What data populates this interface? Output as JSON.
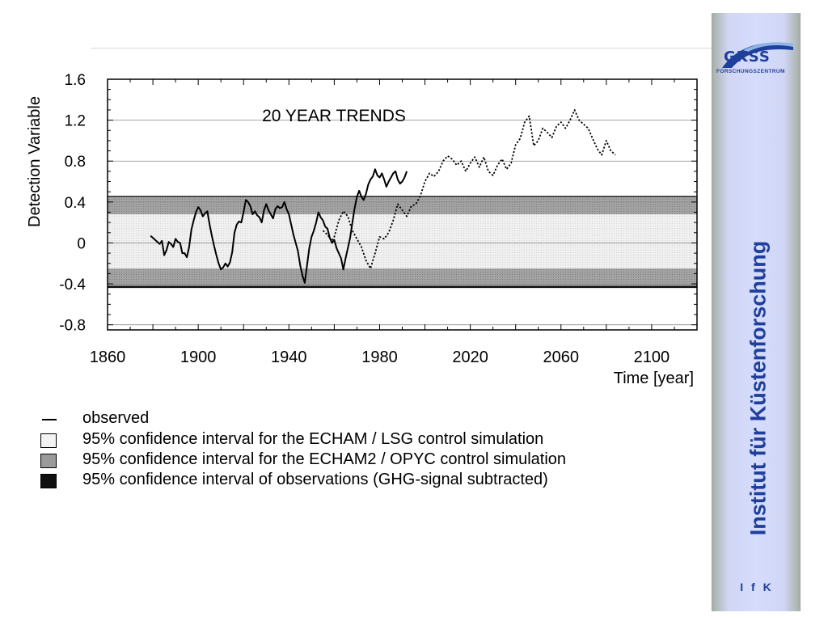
{
  "chart_data": {
    "type": "line",
    "title": "20 YEAR TRENDS",
    "ylabel": "Detection Variable",
    "xlabel": "Time [year]",
    "xlim": [
      1860,
      2120
    ],
    "ylim": [
      -0.85,
      1.6
    ],
    "x_ticks": [
      "1860",
      "1900",
      "1940",
      "1980",
      "2020",
      "2060",
      "2100"
    ],
    "y_ticks": [
      "1.6",
      "1.2",
      "0.8",
      "0.4",
      "0",
      "-0.4",
      "-0.8"
    ],
    "grid": "horizontal",
    "bands": [
      {
        "name": "95% confidence interval of observations (GHG-signal subtracted)",
        "lower": -0.44,
        "upper": 0.46,
        "color": "#101010"
      },
      {
        "name": "95% confidence interval for the ECHAM2 / OPYC control simulation",
        "lower": -0.42,
        "upper": 0.45,
        "color": "#9a9a9a"
      },
      {
        "name": "95% confidence interval for the ECHAM / LSG control simulation",
        "lower": -0.25,
        "upper": 0.28,
        "color": "#ededed"
      }
    ],
    "series": [
      {
        "name": "observed",
        "style": "solid",
        "x": [
          1879,
          1881,
          1883,
          1884,
          1885,
          1886,
          1887,
          1888,
          1889,
          1890,
          1891,
          1892,
          1893,
          1894,
          1895,
          1896,
          1897,
          1898,
          1899,
          1900,
          1901,
          1902,
          1903,
          1904,
          1905,
          1906,
          1907,
          1908,
          1909,
          1910,
          1911,
          1912,
          1913,
          1914,
          1915,
          1916,
          1917,
          1918,
          1919,
          1920,
          1921,
          1922,
          1923,
          1924,
          1925,
          1926,
          1927,
          1928,
          1929,
          1930,
          1931,
          1932,
          1933,
          1934,
          1935,
          1936,
          1937,
          1938,
          1939,
          1940,
          1941,
          1942,
          1943,
          1944,
          1945,
          1946,
          1947,
          1948,
          1949,
          1950,
          1951,
          1952,
          1953,
          1954,
          1955,
          1956,
          1957,
          1958,
          1959,
          1960,
          1961,
          1962,
          1963,
          1964,
          1965,
          1966,
          1967,
          1968,
          1969,
          1970,
          1971,
          1972,
          1973,
          1974,
          1975,
          1976,
          1977,
          1978,
          1979,
          1980,
          1981,
          1982,
          1983,
          1984,
          1985,
          1986,
          1987,
          1988,
          1989,
          1990,
          1991,
          1992
        ],
        "y": [
          0.07,
          0.03,
          -0.01,
          0.02,
          -0.12,
          -0.07,
          0.01,
          -0.01,
          -0.04,
          0.04,
          0.01,
          0.0,
          -0.1,
          -0.1,
          -0.14,
          -0.04,
          0.13,
          0.22,
          0.3,
          0.35,
          0.32,
          0.26,
          0.29,
          0.31,
          0.18,
          0.07,
          -0.03,
          -0.12,
          -0.2,
          -0.26,
          -0.24,
          -0.2,
          -0.23,
          -0.19,
          -0.09,
          0.1,
          0.18,
          0.21,
          0.2,
          0.3,
          0.42,
          0.4,
          0.36,
          0.28,
          0.31,
          0.27,
          0.25,
          0.2,
          0.32,
          0.38,
          0.32,
          0.28,
          0.24,
          0.33,
          0.36,
          0.34,
          0.35,
          0.4,
          0.33,
          0.28,
          0.18,
          0.08,
          0.0,
          -0.08,
          -0.22,
          -0.32,
          -0.39,
          -0.22,
          -0.05,
          0.06,
          0.12,
          0.2,
          0.3,
          0.25,
          0.22,
          0.16,
          0.14,
          0.05,
          0.0,
          0.03,
          -0.05,
          -0.1,
          -0.15,
          -0.26,
          -0.15,
          -0.05,
          0.05,
          0.2,
          0.34,
          0.45,
          0.51,
          0.45,
          0.42,
          0.48,
          0.57,
          0.62,
          0.65,
          0.72,
          0.66,
          0.64,
          0.68,
          0.62,
          0.55,
          0.6,
          0.64,
          0.68,
          0.7,
          0.62,
          0.58,
          0.6,
          0.64,
          0.7
        ]
      },
      {
        "name": "",
        "style": "dotted",
        "x": [
          1955,
          1957,
          1959,
          1960,
          1962,
          1964,
          1966,
          1968,
          1970,
          1972,
          1974,
          1976,
          1978,
          1980,
          1982,
          1984,
          1986,
          1987,
          1988,
          1990,
          1992,
          1994,
          1996,
          1998,
          2000,
          2002,
          2004,
          2006,
          2008,
          2010,
          2012,
          2014,
          2016,
          2018,
          2020,
          2022,
          2024,
          2026,
          2028,
          2030,
          2032,
          2034,
          2036,
          2038,
          2040,
          2042,
          2044,
          2046,
          2048,
          2050,
          2052,
          2054,
          2056,
          2058,
          2060,
          2062,
          2064,
          2066,
          2068,
          2070,
          2072,
          2074,
          2076,
          2078,
          2080,
          2082,
          2084
        ],
        "y": [
          0.12,
          0.08,
          0.02,
          0.06,
          0.22,
          0.31,
          0.26,
          0.12,
          0.04,
          -0.04,
          -0.17,
          -0.25,
          -0.1,
          0.06,
          0.04,
          0.1,
          0.22,
          0.3,
          0.38,
          0.32,
          0.26,
          0.36,
          0.38,
          0.46,
          0.6,
          0.68,
          0.65,
          0.7,
          0.8,
          0.85,
          0.82,
          0.76,
          0.8,
          0.7,
          0.78,
          0.84,
          0.74,
          0.84,
          0.7,
          0.66,
          0.76,
          0.82,
          0.72,
          0.78,
          0.96,
          1.02,
          1.18,
          1.24,
          0.95,
          1.0,
          1.12,
          1.08,
          1.03,
          1.14,
          1.18,
          1.12,
          1.2,
          1.3,
          1.2,
          1.16,
          1.12,
          1.02,
          0.92,
          0.86,
          1.0,
          0.9,
          0.86
        ]
      }
    ],
    "legend": [
      {
        "label": "observed",
        "style": "line"
      },
      {
        "label": "95% confidence interval for the ECHAM / LSG control simulation",
        "color": "#ededed"
      },
      {
        "label": "95% confidence interval for the ECHAM2 / OPYC control simulation",
        "color": "#9a9a9a"
      },
      {
        "label": "95% confidence interval of observations (GHG-signal subtracted)",
        "color": "#101010"
      }
    ]
  },
  "sidebar": {
    "logo_title": "GKSS",
    "logo_subtitle": "FORSCHUNGSZENTRUM",
    "institute": "Institut für Küstenforschung",
    "abbrev": "I f K",
    "brand_color": "#1f3f9c",
    "logo_icon": "arc-logo-icon"
  }
}
